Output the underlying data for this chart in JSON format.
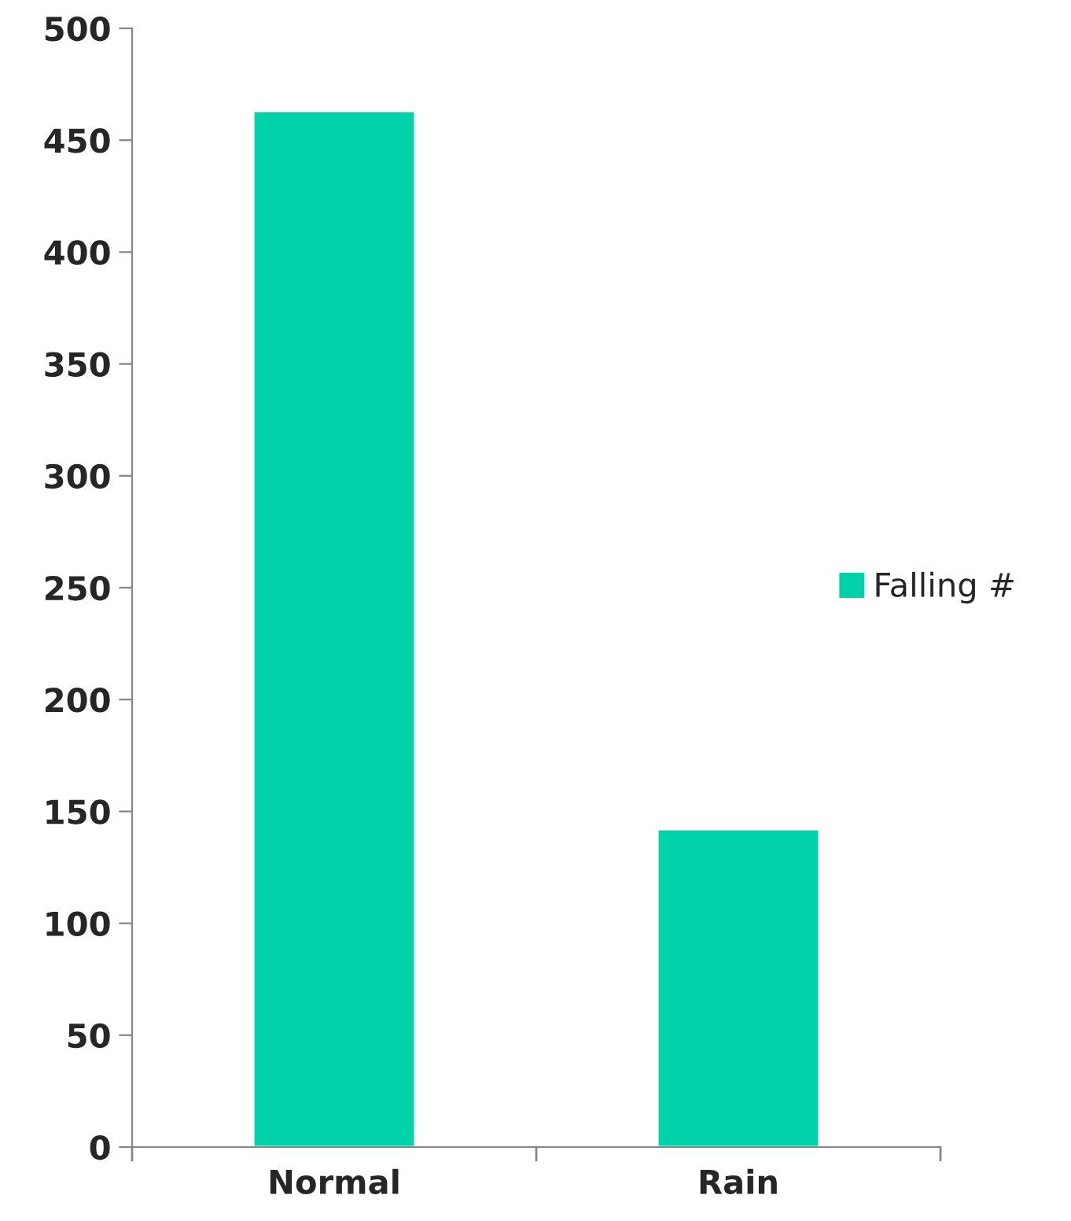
{
  "chart_data": {
    "type": "bar",
    "categories": [
      "Normal",
      "Rain"
    ],
    "series": [
      {
        "name": "Falling #",
        "color": "#00d3aa",
        "values": [
          463,
          142
        ]
      }
    ],
    "ylim": [
      0,
      500
    ],
    "yticks": [
      0,
      50,
      100,
      150,
      200,
      250,
      300,
      350,
      400,
      450,
      500
    ],
    "grid": false,
    "legend": "right"
  }
}
